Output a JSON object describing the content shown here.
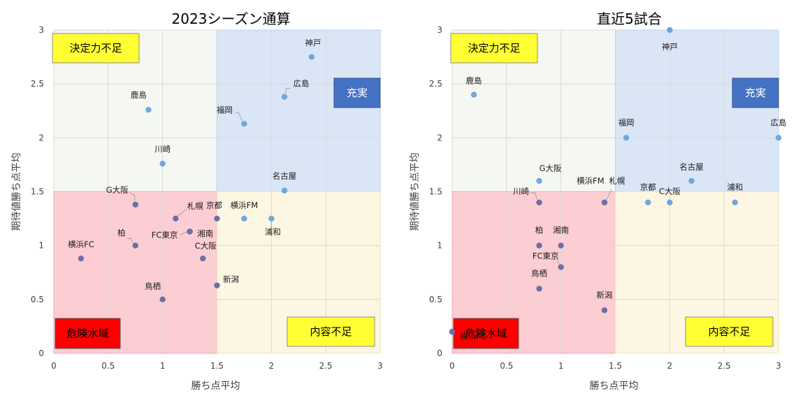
{
  "chart_data": [
    {
      "type": "scatter",
      "title": "2023シーズン通算",
      "xlabel": "勝ち点平均",
      "ylabel": "期待値勝ち点平均",
      "xlim": [
        0,
        3
      ],
      "ylim": [
        0,
        3
      ],
      "xticks": [
        "0",
        "0.5",
        "1",
        "1.5",
        "2",
        "2.5",
        "3"
      ],
      "yticks": [
        "0",
        "0.5",
        "1",
        "1.5",
        "2",
        "2.5",
        "3"
      ],
      "threshold_x": 1.5,
      "threshold_y": 1.5,
      "grid": true,
      "quadrants": {
        "top_left": "決定力不足",
        "top_right": "充実",
        "bottom_left": "危険水域",
        "bottom_right": "内容不足"
      },
      "colors": {
        "top_left": "#f5f7f2",
        "top_right": "#dae6f5",
        "bottom_left": "#fccdd2",
        "bottom_right": "#fdf6e3",
        "point_light": "#6fa8dc",
        "point_dark": "#6b70a8",
        "yellow_box": "#ffff33",
        "blue_box": "#4472c4",
        "red_box": "#ff0000"
      },
      "points": [
        {
          "label": "神戸",
          "x": 2.37,
          "y": 2.75
        },
        {
          "label": "広島",
          "x": 2.12,
          "y": 2.38
        },
        {
          "label": "鹿島",
          "x": 0.87,
          "y": 2.26
        },
        {
          "label": "福岡",
          "x": 1.75,
          "y": 2.13
        },
        {
          "label": "川崎",
          "x": 1.0,
          "y": 1.76
        },
        {
          "label": "名古屋",
          "x": 2.12,
          "y": 1.51
        },
        {
          "label": "G大阪",
          "x": 0.75,
          "y": 1.38
        },
        {
          "label": "札幌",
          "x": 1.12,
          "y": 1.25
        },
        {
          "label": "京都",
          "x": 1.5,
          "y": 1.25
        },
        {
          "label": "横浜FM",
          "x": 1.75,
          "y": 1.25
        },
        {
          "label": "浦和",
          "x": 2.0,
          "y": 1.25
        },
        {
          "label": "FC東京",
          "x": 1.25,
          "y": 1.13
        },
        {
          "label": "湘南",
          "x": 1.25,
          "y": 1.13
        },
        {
          "label": "柏",
          "x": 0.75,
          "y": 1.0
        },
        {
          "label": "横浜FC",
          "x": 0.25,
          "y": 0.88
        },
        {
          "label": "C大阪",
          "x": 1.37,
          "y": 0.88
        },
        {
          "label": "新潟",
          "x": 1.5,
          "y": 0.63
        },
        {
          "label": "鳥栖",
          "x": 1.0,
          "y": 0.5
        }
      ]
    },
    {
      "type": "scatter",
      "title": "直近5試合",
      "xlabel": "勝ち点平均",
      "ylabel": "期待値勝ち点平均",
      "xlim": [
        0,
        3
      ],
      "ylim": [
        0,
        3
      ],
      "xticks": [
        "0",
        "0.5",
        "1",
        "1.5",
        "2",
        "2.5",
        "3"
      ],
      "yticks": [
        "0",
        "0.5",
        "1",
        "1.5",
        "2",
        "2.5",
        "3"
      ],
      "threshold_x": 1.5,
      "threshold_y": 1.5,
      "grid": true,
      "quadrants": {
        "top_left": "決定力不足",
        "top_right": "充実",
        "bottom_left": "危険水域",
        "bottom_right": "内容不足"
      },
      "colors": {
        "top_left": "#f5f7f2",
        "top_right": "#dae6f5",
        "bottom_left": "#fccdd2",
        "bottom_right": "#fdf6e3",
        "point_light": "#6fa8dc",
        "point_dark": "#6b70a8",
        "yellow_box": "#ffff33",
        "blue_box": "#4472c4",
        "red_box": "#ff0000"
      },
      "points": [
        {
          "label": "神戸",
          "x": 2.0,
          "y": 3.0
        },
        {
          "label": "鹿島",
          "x": 0.2,
          "y": 2.4
        },
        {
          "label": "福岡",
          "x": 1.6,
          "y": 2.0
        },
        {
          "label": "広島",
          "x": 3.0,
          "y": 2.0
        },
        {
          "label": "G大阪",
          "x": 0.8,
          "y": 1.6
        },
        {
          "label": "名古屋",
          "x": 2.2,
          "y": 1.6
        },
        {
          "label": "川崎",
          "x": 0.8,
          "y": 1.4
        },
        {
          "label": "横浜FM",
          "x": 1.4,
          "y": 1.4
        },
        {
          "label": "札幌",
          "x": 1.4,
          "y": 1.4
        },
        {
          "label": "京都",
          "x": 1.8,
          "y": 1.4
        },
        {
          "label": "C大阪",
          "x": 2.0,
          "y": 1.4
        },
        {
          "label": "浦和",
          "x": 2.6,
          "y": 1.4
        },
        {
          "label": "柏",
          "x": 0.8,
          "y": 1.0
        },
        {
          "label": "湘南",
          "x": 1.0,
          "y": 1.0
        },
        {
          "label": "FC東京",
          "x": 1.0,
          "y": 0.8
        },
        {
          "label": "鳥栖",
          "x": 0.8,
          "y": 0.6
        },
        {
          "label": "新潟",
          "x": 1.4,
          "y": 0.4
        },
        {
          "label": "横浜FC",
          "x": 0.0,
          "y": 0.2
        }
      ]
    }
  ]
}
